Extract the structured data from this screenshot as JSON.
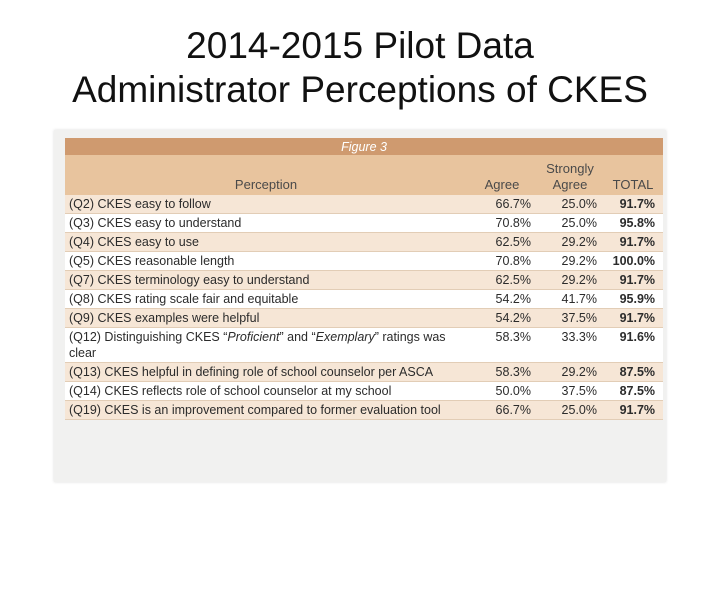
{
  "title": {
    "line1": "2014-2015 Pilot Data",
    "line2": "Administrator Perceptions of CKES"
  },
  "figure": {
    "caption": "Figure 3",
    "headers": {
      "perception": "Perception",
      "agree": "Agree",
      "strongly_agree_line1": "Strongly",
      "strongly_agree_line2": "Agree",
      "total": "TOTAL"
    },
    "rows": [
      {
        "perception": "(Q2) CKES easy to follow",
        "agree": "66.7%",
        "strongly_agree": "25.0%",
        "total": "91.7%"
      },
      {
        "perception": "(Q3) CKES easy to understand",
        "agree": "70.8%",
        "strongly_agree": "25.0%",
        "total": "95.8%"
      },
      {
        "perception": "(Q4) CKES easy to use",
        "agree": "62.5%",
        "strongly_agree": "29.2%",
        "total": "91.7%"
      },
      {
        "perception": "(Q5) CKES reasonable length",
        "agree": "70.8%",
        "strongly_agree": "29.2%",
        "total": "100.0%"
      },
      {
        "perception": "(Q7) CKES terminology easy to understand",
        "agree": "62.5%",
        "strongly_agree": "29.2%",
        "total": "91.7%"
      },
      {
        "perception": "(Q8) CKES rating scale fair and equitable",
        "agree": "54.2%",
        "strongly_agree": "41.7%",
        "total": "95.9%"
      },
      {
        "perception": "(Q9) CKES examples were helpful",
        "agree": "54.2%",
        "strongly_agree": "37.5%",
        "total": "91.7%"
      },
      {
        "perception_parts": [
          "(Q12) Distinguishing CKES “",
          "Proficient",
          "” and “",
          "Exemplary",
          "” ratings was clear"
        ],
        "agree": "58.3%",
        "strongly_agree": "33.3%",
        "total": "91.6%"
      },
      {
        "perception": "(Q13) CKES helpful in defining role of school counselor per ASCA",
        "agree": "58.3%",
        "strongly_agree": "29.2%",
        "total": "87.5%"
      },
      {
        "perception": "(Q14) CKES reflects role of school counselor at my school",
        "agree": "50.0%",
        "strongly_agree": "37.5%",
        "total": "87.5%"
      },
      {
        "perception": "(Q19) CKES is an improvement compared to former evaluation tool",
        "agree": "66.7%",
        "strongly_agree": "25.0%",
        "total": "91.7%"
      }
    ]
  }
}
